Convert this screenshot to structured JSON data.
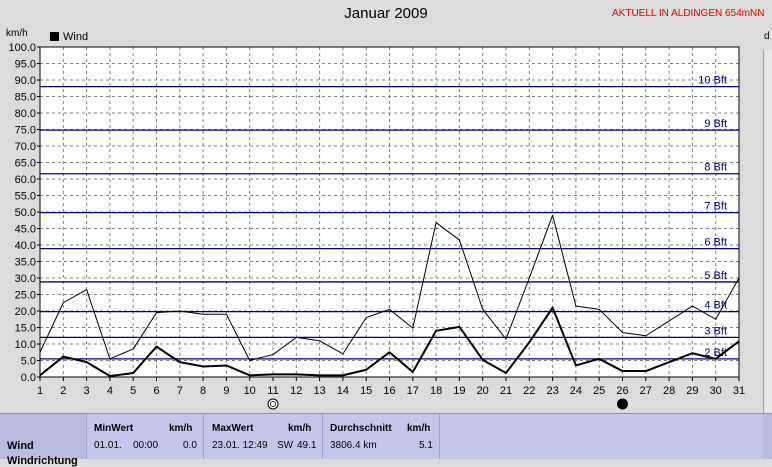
{
  "title": "Januar 2009",
  "station": "AKTUELL IN ALDINGEN 654mNN",
  "y_unit_label": "km/h",
  "right_unit_label": "d",
  "legend": {
    "label": "Wind",
    "color": "#000000"
  },
  "chart_data": {
    "type": "line",
    "title": "Januar 2009",
    "ylabel": "km/h",
    "ylim": [
      0,
      100
    ],
    "y_ticks": [
      "0.0",
      "5.0",
      "10.0",
      "15.0",
      "20.0",
      "25.0",
      "30.0",
      "35.0",
      "40.0",
      "45.0",
      "50.0",
      "55.0",
      "60.0",
      "65.0",
      "70.0",
      "75.0",
      "80.0",
      "85.0",
      "90.0",
      "95.0",
      "100.0"
    ],
    "x": [
      1,
      2,
      3,
      4,
      5,
      6,
      7,
      8,
      9,
      10,
      11,
      12,
      13,
      14,
      15,
      16,
      17,
      18,
      19,
      20,
      21,
      22,
      23,
      24,
      25,
      26,
      27,
      28,
      29,
      30,
      31
    ],
    "x_ticks": [
      "1",
      "2",
      "3",
      "4",
      "5",
      "6",
      "7",
      "8",
      "9",
      "10",
      "11",
      "12",
      "13",
      "14",
      "15",
      "16",
      "17",
      "18",
      "19",
      "20",
      "21",
      "22",
      "23",
      "24",
      "25",
      "26",
      "27",
      "28",
      "29",
      "30",
      "31"
    ],
    "series": [
      {
        "name": "Wind",
        "style": "bold",
        "values": [
          0.5,
          6.2,
          4.5,
          0.3,
          1.2,
          9.2,
          4.5,
          3.2,
          3.5,
          0.5,
          0.8,
          0.8,
          0.5,
          0.5,
          2.2,
          7.5,
          1.5,
          14.0,
          15.2,
          5.2,
          1.2,
          10.5,
          21.0,
          3.5,
          5.5,
          1.8,
          1.8,
          4.5,
          7.2,
          5.5,
          10.8
        ]
      },
      {
        "name": "",
        "style": "thin",
        "values": [
          7.5,
          22.5,
          26.5,
          5.5,
          8.5,
          19.5,
          20.0,
          19.0,
          19.0,
          5.0,
          6.8,
          12.0,
          11.0,
          7.0,
          18.0,
          20.5,
          14.8,
          46.8,
          41.5,
          20.5,
          11.5,
          30.0,
          49.0,
          21.5,
          20.5,
          13.5,
          12.5,
          17.0,
          21.5,
          17.5,
          30.0
        ]
      }
    ],
    "beaufort": [
      {
        "label": "2 Bft",
        "value": 5.5
      },
      {
        "label": "3 Bft",
        "value": 12.0
      },
      {
        "label": "4 Bft",
        "value": 19.8
      },
      {
        "label": "5 Bft",
        "value": 28.8
      },
      {
        "label": "6 Bft",
        "value": 38.9
      },
      {
        "label": "7 Bft",
        "value": 49.8
      },
      {
        "label": "8 Bft",
        "value": 61.6
      },
      {
        "label": "9 Bft",
        "value": 74.8
      },
      {
        "label": "10 Bft",
        "value": 88.0
      }
    ],
    "moon_markers": [
      {
        "day": 11,
        "phase": "full"
      },
      {
        "day": 26,
        "phase": "new"
      }
    ],
    "grid": true,
    "legend_position": "top-left",
    "colors": {
      "plot_bg": "#ffffff",
      "bft_line": "#000080",
      "bft_text": "#000080",
      "grid": "#808080"
    }
  },
  "stats": {
    "row_label": "Wind",
    "row_label_2": "Windrichtung",
    "min": {
      "header": "MinWert",
      "unit": "km/h",
      "date": "01.01.",
      "time": "00:00",
      "value": "0.0"
    },
    "max": {
      "header": "MaxWert",
      "unit": "km/h",
      "datetime": "23.01. 12:49",
      "dir": "SW",
      "value": "49.1"
    },
    "avg": {
      "header": "Durchschnitt",
      "unit": "km/h",
      "distance": "3806.4 km",
      "value": "5.1"
    }
  }
}
